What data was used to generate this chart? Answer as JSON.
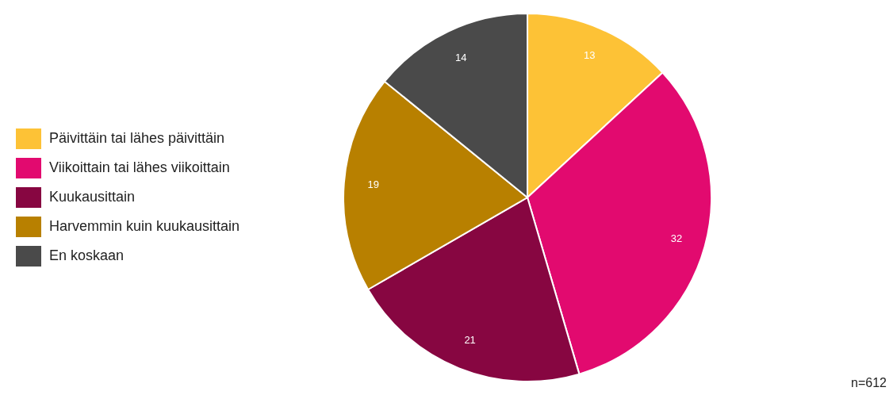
{
  "chart_data": {
    "type": "pie",
    "categories": [
      "Päivittäin tai lähes päivittäin",
      "Viikoittain tai lähes viikoittain",
      "Kuukausittain",
      "Harvemmin kuin kuukausittain",
      "En koskaan"
    ],
    "values": [
      13,
      32,
      21,
      19,
      14
    ],
    "colors": [
      "#fdc236",
      "#e20a6f",
      "#870641",
      "#b88000",
      "#4a4a4a"
    ],
    "data_labels": true,
    "legend": "left",
    "annotations": [
      "n=612"
    ]
  }
}
